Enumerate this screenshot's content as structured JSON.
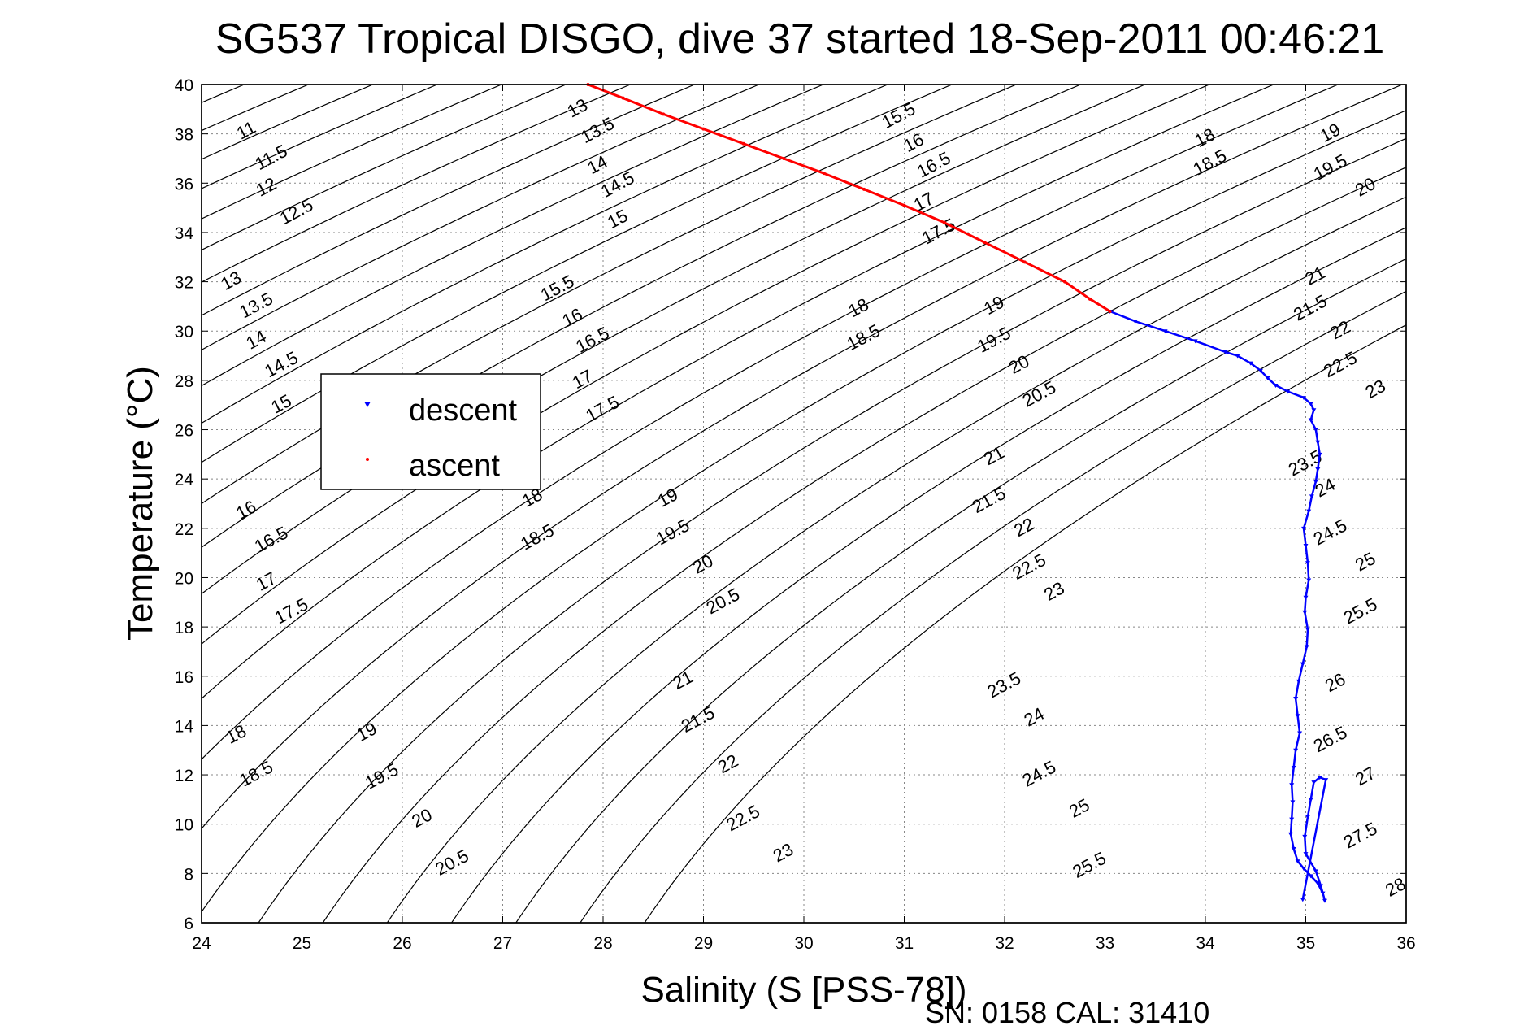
{
  "chart_data": {
    "type": "scatter",
    "title": "SG537 Tropical DISGO, dive 37 started 18-Sep-2011 00:46:21",
    "xlabel": "Salinity (S [PSS-78])",
    "ylabel": "Temperature (°C)",
    "xlim": [
      24,
      36
    ],
    "ylim": [
      6,
      40
    ],
    "xticks": [
      "24",
      "25",
      "26",
      "27",
      "28",
      "29",
      "30",
      "31",
      "32",
      "33",
      "34",
      "35",
      "36"
    ],
    "yticks": [
      "6",
      "8",
      "10",
      "12",
      "14",
      "16",
      "18",
      "20",
      "22",
      "24",
      "26",
      "28",
      "30",
      "32",
      "34",
      "36",
      "38",
      "40"
    ],
    "grid": true,
    "legend_position": "upper-left",
    "footer": "SN: 0158  CAL: 31410",
    "density_contours": {
      "levels": [
        11,
        11.5,
        12,
        12.5,
        13,
        13.5,
        14,
        14.5,
        15,
        15.5,
        16,
        16.5,
        17,
        17.5,
        18,
        18.5,
        19,
        19.5,
        20,
        20.5,
        21,
        21.5,
        22,
        22.5,
        23,
        23.5,
        24,
        24.5,
        25,
        25.5,
        26,
        26.5,
        27,
        27.5,
        28
      ],
      "labels": [
        {
          "text": "11",
          "s": 24.45,
          "t": 38.1
        },
        {
          "text": "11.5",
          "s": 24.7,
          "t": 37.0
        },
        {
          "text": "12",
          "s": 24.65,
          "t": 35.8
        },
        {
          "text": "12.5",
          "s": 24.95,
          "t": 34.8
        },
        {
          "text": "13",
          "s": 24.3,
          "t": 32.0
        },
        {
          "text": "13.5",
          "s": 24.55,
          "t": 31.0
        },
        {
          "text": "14",
          "s": 24.55,
          "t": 29.6
        },
        {
          "text": "14.5",
          "s": 24.8,
          "t": 28.6
        },
        {
          "text": "15",
          "s": 24.8,
          "t": 27.0
        },
        {
          "text": "13",
          "s": 27.75,
          "t": 39.0
        },
        {
          "text": "13.5",
          "s": 27.95,
          "t": 38.1
        },
        {
          "text": "14",
          "s": 27.95,
          "t": 36.7
        },
        {
          "text": "14.5",
          "s": 28.15,
          "t": 35.9
        },
        {
          "text": "15",
          "s": 28.15,
          "t": 34.5
        },
        {
          "text": "15.5",
          "s": 27.55,
          "t": 31.7
        },
        {
          "text": "16",
          "s": 27.7,
          "t": 30.5
        },
        {
          "text": "16.5",
          "s": 27.9,
          "t": 29.6
        },
        {
          "text": "17",
          "s": 27.8,
          "t": 28.0
        },
        {
          "text": "17.5",
          "s": 28.0,
          "t": 26.8
        },
        {
          "text": "15.5",
          "s": 30.95,
          "t": 38.7
        },
        {
          "text": "16",
          "s": 31.1,
          "t": 37.6
        },
        {
          "text": "16.5",
          "s": 31.3,
          "t": 36.7
        },
        {
          "text": "17",
          "s": 31.2,
          "t": 35.2
        },
        {
          "text": "17.5",
          "s": 31.35,
          "t": 34.0
        },
        {
          "text": "18",
          "s": 30.55,
          "t": 30.9
        },
        {
          "text": "18.5",
          "s": 30.6,
          "t": 29.7
        },
        {
          "text": "19",
          "s": 31.9,
          "t": 31.0
        },
        {
          "text": "19.5",
          "s": 31.9,
          "t": 29.6
        },
        {
          "text": "20",
          "s": 32.15,
          "t": 28.6
        },
        {
          "text": "20.5",
          "s": 32.35,
          "t": 27.4
        },
        {
          "text": "18",
          "s": 34.0,
          "t": 37.8
        },
        {
          "text": "18.5",
          "s": 34.05,
          "t": 36.8
        },
        {
          "text": "19",
          "s": 35.25,
          "t": 38.0
        },
        {
          "text": "19.5",
          "s": 35.25,
          "t": 36.6
        },
        {
          "text": "20",
          "s": 35.6,
          "t": 35.8
        },
        {
          "text": "21",
          "s": 35.1,
          "t": 32.2
        },
        {
          "text": "21.5",
          "s": 35.05,
          "t": 30.9
        },
        {
          "text": "22",
          "s": 35.35,
          "t": 30.0
        },
        {
          "text": "22.5",
          "s": 35.35,
          "t": 28.6
        },
        {
          "text": "23",
          "s": 35.7,
          "t": 27.6
        },
        {
          "text": "16",
          "s": 24.45,
          "t": 22.7
        },
        {
          "text": "16.5",
          "s": 24.7,
          "t": 21.5
        },
        {
          "text": "17",
          "s": 24.65,
          "t": 19.8
        },
        {
          "text": "17.5",
          "s": 24.9,
          "t": 18.6
        },
        {
          "text": "18",
          "s": 27.3,
          "t": 23.2
        },
        {
          "text": "18.5",
          "s": 27.35,
          "t": 21.6
        },
        {
          "text": "19",
          "s": 28.65,
          "t": 23.2
        },
        {
          "text": "19.5",
          "s": 28.7,
          "t": 21.8
        },
        {
          "text": "20",
          "s": 29.0,
          "t": 20.5
        },
        {
          "text": "20.5",
          "s": 29.2,
          "t": 19.0
        },
        {
          "text": "21",
          "s": 31.9,
          "t": 24.9
        },
        {
          "text": "21.5",
          "s": 31.85,
          "t": 23.1
        },
        {
          "text": "22",
          "s": 32.2,
          "t": 22.0
        },
        {
          "text": "22.5",
          "s": 32.25,
          "t": 20.4
        },
        {
          "text": "23",
          "s": 32.5,
          "t": 19.4
        },
        {
          "text": "23.5",
          "s": 35.0,
          "t": 24.6
        },
        {
          "text": "24",
          "s": 35.2,
          "t": 23.6
        },
        {
          "text": "24.5",
          "s": 35.25,
          "t": 21.8
        },
        {
          "text": "25",
          "s": 35.6,
          "t": 20.6
        },
        {
          "text": "25.5",
          "s": 35.55,
          "t": 18.6
        },
        {
          "text": "18",
          "s": 24.35,
          "t": 13.6
        },
        {
          "text": "18.5",
          "s": 24.55,
          "t": 12.0
        },
        {
          "text": "19",
          "s": 25.65,
          "t": 13.7
        },
        {
          "text": "19.5",
          "s": 25.8,
          "t": 11.9
        },
        {
          "text": "20",
          "s": 26.2,
          "t": 10.2
        },
        {
          "text": "20.5",
          "s": 26.5,
          "t": 8.4
        },
        {
          "text": "21",
          "s": 28.8,
          "t": 15.8
        },
        {
          "text": "21.5",
          "s": 28.95,
          "t": 14.2
        },
        {
          "text": "22",
          "s": 29.25,
          "t": 12.4
        },
        {
          "text": "22.5",
          "s": 29.4,
          "t": 10.2
        },
        {
          "text": "23",
          "s": 29.8,
          "t": 8.8
        },
        {
          "text": "23.5",
          "s": 32.0,
          "t": 15.6
        },
        {
          "text": "24",
          "s": 32.3,
          "t": 14.3
        },
        {
          "text": "24.5",
          "s": 32.35,
          "t": 12.0
        },
        {
          "text": "25",
          "s": 32.75,
          "t": 10.6
        },
        {
          "text": "25.5",
          "s": 32.85,
          "t": 8.3
        },
        {
          "text": "26",
          "s": 35.3,
          "t": 15.7
        },
        {
          "text": "26.5",
          "s": 35.25,
          "t": 13.4
        },
        {
          "text": "27",
          "s": 35.6,
          "t": 11.9
        },
        {
          "text": "27.5",
          "s": 35.55,
          "t": 9.5
        },
        {
          "text": "28",
          "s": 35.9,
          "t": 7.4
        }
      ]
    },
    "series": [
      {
        "name": "descent",
        "color": "#0000ff",
        "marker": "triangle-down",
        "points": [
          [
            33.05,
            30.8
          ],
          [
            33.3,
            30.4
          ],
          [
            33.6,
            30.0
          ],
          [
            33.9,
            29.6
          ],
          [
            34.2,
            29.15
          ],
          [
            34.32,
            29.0
          ],
          [
            34.45,
            28.7
          ],
          [
            34.55,
            28.4
          ],
          [
            34.62,
            28.1
          ],
          [
            34.7,
            27.8
          ],
          [
            34.82,
            27.55
          ],
          [
            34.98,
            27.3
          ],
          [
            35.05,
            27.05
          ],
          [
            35.08,
            26.8
          ],
          [
            35.05,
            26.4
          ],
          [
            35.1,
            26.0
          ],
          [
            35.12,
            25.5
          ],
          [
            35.14,
            25.0
          ],
          [
            35.12,
            24.4
          ],
          [
            35.1,
            23.9
          ],
          [
            35.06,
            23.3
          ],
          [
            35.03,
            22.7
          ],
          [
            34.98,
            22.0
          ],
          [
            35.0,
            21.3
          ],
          [
            35.02,
            20.6
          ],
          [
            35.03,
            19.9
          ],
          [
            35.0,
            19.2
          ],
          [
            34.99,
            18.6
          ],
          [
            35.02,
            17.9
          ],
          [
            35.01,
            17.2
          ],
          [
            34.97,
            16.5
          ],
          [
            34.93,
            15.8
          ],
          [
            34.9,
            15.1
          ],
          [
            34.92,
            14.4
          ],
          [
            34.94,
            13.7
          ],
          [
            34.9,
            13.0
          ],
          [
            34.88,
            12.3
          ],
          [
            34.86,
            11.6
          ],
          [
            34.87,
            10.9
          ],
          [
            34.86,
            10.2
          ],
          [
            34.85,
            9.6
          ],
          [
            34.88,
            9.0
          ],
          [
            34.92,
            8.5
          ],
          [
            34.98,
            8.2
          ],
          [
            35.05,
            7.9
          ],
          [
            35.12,
            7.6
          ],
          [
            35.17,
            7.2
          ],
          [
            35.19,
            6.9
          ],
          [
            35.15,
            7.5
          ],
          [
            35.1,
            8.1
          ],
          [
            35.0,
            8.8
          ],
          [
            34.99,
            9.5
          ],
          [
            35.02,
            10.3
          ],
          [
            35.05,
            11.0
          ],
          [
            35.08,
            11.7
          ],
          [
            35.14,
            11.9
          ],
          [
            35.2,
            11.8
          ],
          [
            34.97,
            6.95
          ]
        ]
      },
      {
        "name": "ascent",
        "color": "#ff0000",
        "marker": "point",
        "points": [
          [
            27.85,
            40.0
          ],
          [
            28.2,
            39.45
          ],
          [
            28.6,
            38.8
          ],
          [
            29.0,
            38.2
          ],
          [
            29.4,
            37.6
          ],
          [
            29.8,
            37.0
          ],
          [
            30.2,
            36.4
          ],
          [
            30.6,
            35.75
          ],
          [
            31.0,
            35.1
          ],
          [
            31.4,
            34.4
          ],
          [
            31.8,
            33.6
          ],
          [
            32.2,
            32.8
          ],
          [
            32.6,
            32.0
          ],
          [
            32.85,
            31.3
          ],
          [
            33.05,
            30.8
          ]
        ]
      }
    ]
  }
}
